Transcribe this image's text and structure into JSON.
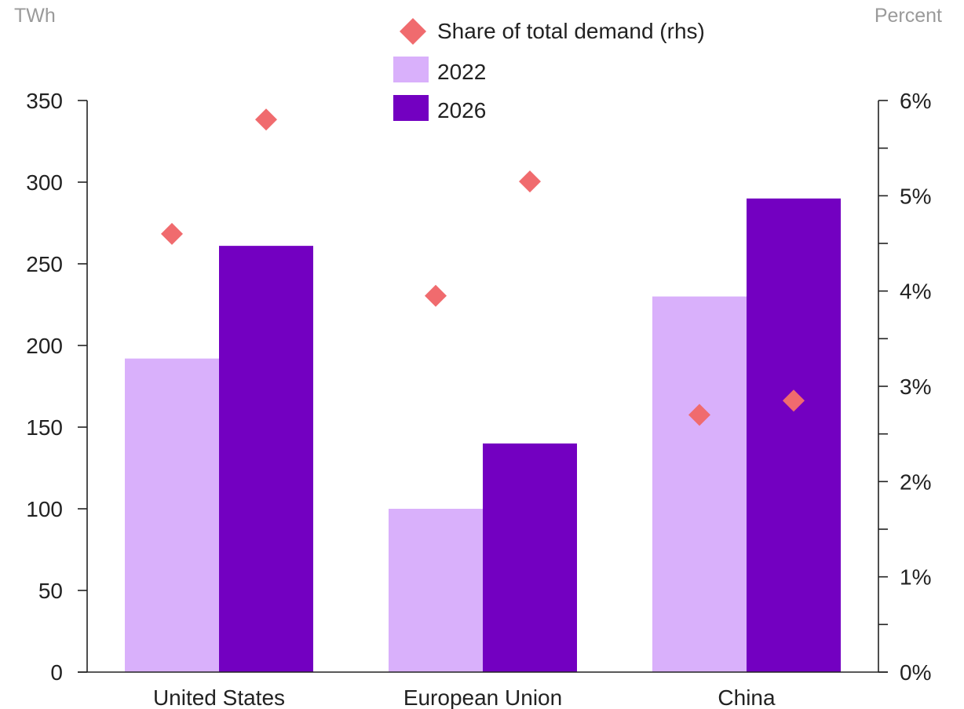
{
  "chart_data": {
    "type": "bar",
    "categories": [
      "United States",
      "European Union",
      "China"
    ],
    "left_axis": {
      "unit": "TWh",
      "range": [
        0,
        350
      ],
      "ticks": [
        0,
        50,
        100,
        150,
        200,
        250,
        300,
        350
      ],
      "tick_labels": [
        "0",
        "50",
        "100",
        "150",
        "200",
        "250",
        "300",
        "350"
      ]
    },
    "right_axis": {
      "unit": "Percent",
      "range": [
        0,
        6
      ],
      "ticks": [
        0,
        0.5,
        1,
        1.5,
        2,
        2.5,
        3,
        3.5,
        4,
        4.5,
        5,
        5.5,
        6
      ],
      "labeled_ticks": [
        0,
        1,
        2,
        3,
        4,
        5,
        6
      ],
      "tick_labels": [
        "0%",
        "1%",
        "2%",
        "3%",
        "4%",
        "5%",
        "6%"
      ]
    },
    "series": [
      {
        "name": "2022",
        "kind": "bar",
        "axis": "left",
        "color": "#d9b0fb",
        "values": [
          192,
          100,
          230
        ]
      },
      {
        "name": "2026",
        "kind": "bar",
        "axis": "left",
        "color": "#7300c1",
        "values": [
          261,
          140,
          290
        ]
      },
      {
        "name": "Share of total demand (rhs)",
        "kind": "scatter",
        "marker": "diamond",
        "axis": "right",
        "color": "#f06b6e",
        "values_2022": [
          4.6,
          3.95,
          2.7
        ],
        "values_2026": [
          5.8,
          5.15,
          2.85
        ]
      }
    ],
    "legend": {
      "placement": "top-center",
      "entries": [
        "Share of total demand (rhs)",
        "2022",
        "2026"
      ]
    },
    "grid": false
  }
}
